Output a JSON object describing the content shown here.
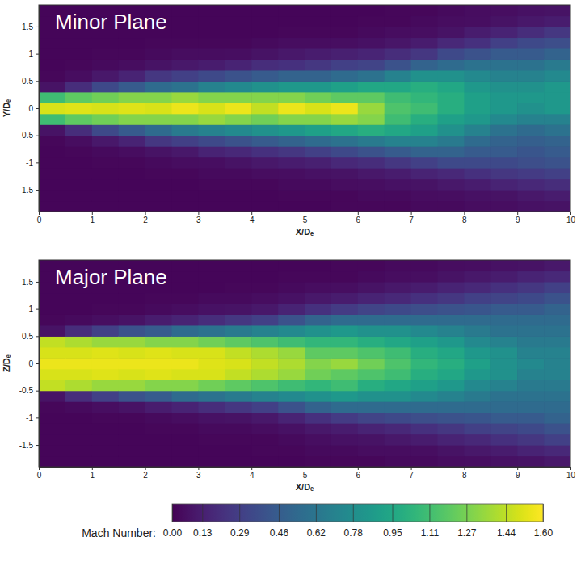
{
  "chart_data": [
    {
      "type": "heatmap",
      "title": "Minor Plane",
      "xlabel": "X/Dₑ",
      "ylabel": "Y/Dₑ",
      "xlim": [
        0,
        10
      ],
      "ylim": [
        -1.9,
        1.9
      ],
      "xticks": [
        0,
        1,
        2,
        3,
        4,
        5,
        6,
        7,
        8,
        9,
        10
      ],
      "yticks": [
        -1.5,
        -1,
        -0.5,
        0,
        0.5,
        1,
        1.5
      ],
      "x": [
        0.25,
        0.75,
        1.25,
        1.75,
        2.25,
        2.75,
        3.25,
        3.75,
        4.25,
        4.75,
        5.25,
        5.75,
        6.25,
        6.75,
        7.25,
        7.75,
        8.25,
        8.75,
        9.25,
        9.75
      ],
      "y": [
        -1.8,
        -1.6,
        -1.4,
        -1.2,
        -1,
        -0.8,
        -0.6,
        -0.4,
        -0.2,
        0,
        0.2,
        0.4,
        0.6,
        0.8,
        1,
        1.2,
        1.4,
        1.6,
        1.8
      ],
      "z": [
        [
          0.02,
          0.02,
          0.02,
          0.02,
          0.02,
          0.02,
          0.03,
          0.08,
          1.1,
          1.5,
          1.1,
          0.08,
          0.03,
          0.02,
          0.02,
          0.02,
          0.02,
          0.02,
          0.02
        ],
        [
          0.02,
          0.02,
          0.02,
          0.02,
          0.02,
          0.03,
          0.05,
          0.2,
          1.2,
          1.52,
          1.2,
          0.2,
          0.05,
          0.03,
          0.02,
          0.02,
          0.02,
          0.02,
          0.02
        ],
        [
          0.02,
          0.02,
          0.02,
          0.02,
          0.03,
          0.04,
          0.1,
          0.35,
          1.25,
          1.5,
          1.25,
          0.35,
          0.1,
          0.04,
          0.03,
          0.02,
          0.02,
          0.02,
          0.02
        ],
        [
          0.02,
          0.02,
          0.02,
          0.02,
          0.03,
          0.05,
          0.15,
          0.45,
          1.3,
          1.52,
          1.3,
          0.45,
          0.15,
          0.05,
          0.03,
          0.02,
          0.02,
          0.02,
          0.02
        ],
        [
          0.02,
          0.02,
          0.02,
          0.03,
          0.04,
          0.08,
          0.25,
          0.55,
          1.3,
          1.5,
          1.3,
          0.55,
          0.25,
          0.08,
          0.04,
          0.03,
          0.02,
          0.02,
          0.02
        ],
        [
          0.02,
          0.02,
          0.02,
          0.03,
          0.05,
          0.1,
          0.3,
          0.65,
          1.3,
          1.55,
          1.35,
          0.6,
          0.3,
          0.1,
          0.05,
          0.03,
          0.02,
          0.02,
          0.02
        ],
        [
          0.02,
          0.02,
          0.03,
          0.04,
          0.06,
          0.15,
          0.35,
          0.7,
          1.35,
          1.5,
          1.3,
          0.7,
          0.35,
          0.12,
          0.05,
          0.03,
          0.02,
          0.02,
          0.02
        ],
        [
          0.02,
          0.02,
          0.03,
          0.04,
          0.08,
          0.18,
          0.4,
          0.75,
          1.3,
          1.55,
          1.3,
          0.75,
          0.4,
          0.15,
          0.06,
          0.03,
          0.02,
          0.02,
          0.02
        ],
        [
          0.02,
          0.02,
          0.03,
          0.05,
          0.1,
          0.22,
          0.45,
          0.8,
          1.25,
          1.45,
          1.3,
          0.8,
          0.45,
          0.2,
          0.08,
          0.04,
          0.02,
          0.02,
          0.02
        ],
        [
          0.02,
          0.03,
          0.04,
          0.06,
          0.12,
          0.25,
          0.5,
          0.85,
          1.3,
          1.55,
          1.3,
          0.85,
          0.5,
          0.22,
          0.1,
          0.05,
          0.03,
          0.02,
          0.02
        ],
        [
          0.02,
          0.03,
          0.04,
          0.07,
          0.14,
          0.3,
          0.55,
          0.9,
          1.3,
          1.5,
          1.25,
          0.85,
          0.5,
          0.25,
          0.12,
          0.05,
          0.03,
          0.02,
          0.02
        ],
        [
          0.03,
          0.03,
          0.05,
          0.08,
          0.18,
          0.35,
          0.6,
          0.95,
          1.35,
          1.55,
          1.2,
          0.9,
          0.55,
          0.3,
          0.14,
          0.06,
          0.03,
          0.02,
          0.02
        ],
        [
          0.03,
          0.04,
          0.06,
          0.1,
          0.2,
          0.4,
          0.65,
          1.0,
          1.3,
          1.35,
          1.2,
          0.95,
          0.6,
          0.32,
          0.16,
          0.07,
          0.04,
          0.03,
          0.02
        ],
        [
          0.03,
          0.04,
          0.07,
          0.12,
          0.25,
          0.45,
          0.7,
          0.95,
          1.1,
          1.15,
          1.1,
          0.95,
          0.7,
          0.4,
          0.2,
          0.09,
          0.05,
          0.03,
          0.03
        ],
        [
          0.04,
          0.05,
          0.08,
          0.15,
          0.3,
          0.5,
          0.7,
          0.9,
          1.0,
          1.1,
          1.05,
          1.0,
          0.8,
          0.5,
          0.25,
          0.12,
          0.06,
          0.04,
          0.03
        ],
        [
          0.04,
          0.06,
          0.1,
          0.18,
          0.35,
          0.5,
          0.65,
          0.8,
          0.9,
          1.0,
          1.0,
          0.95,
          0.8,
          0.55,
          0.35,
          0.18,
          0.08,
          0.05,
          0.04
        ],
        [
          0.05,
          0.07,
          0.12,
          0.22,
          0.35,
          0.45,
          0.55,
          0.7,
          0.85,
          0.9,
          0.9,
          0.85,
          0.75,
          0.6,
          0.4,
          0.22,
          0.12,
          0.06,
          0.05
        ],
        [
          0.06,
          0.08,
          0.15,
          0.25,
          0.35,
          0.45,
          0.5,
          0.6,
          0.75,
          0.85,
          0.85,
          0.8,
          0.7,
          0.6,
          0.45,
          0.3,
          0.15,
          0.08,
          0.06
        ],
        [
          0.07,
          0.1,
          0.18,
          0.28,
          0.38,
          0.42,
          0.48,
          0.55,
          0.7,
          0.8,
          0.85,
          0.8,
          0.7,
          0.6,
          0.45,
          0.35,
          0.2,
          0.1,
          0.07
        ],
        [
          0.08,
          0.12,
          0.2,
          0.3,
          0.4,
          0.45,
          0.5,
          0.6,
          0.7,
          0.85,
          0.85,
          0.85,
          0.75,
          0.65,
          0.5,
          0.38,
          0.25,
          0.12,
          0.08
        ]
      ]
    },
    {
      "type": "heatmap",
      "title": "Major Plane",
      "xlabel": "X/Dₑ",
      "ylabel": "Z/Dₑ",
      "xlim": [
        0,
        10
      ],
      "ylim": [
        -1.9,
        1.9
      ],
      "xticks": [
        0,
        1,
        2,
        3,
        4,
        5,
        6,
        7,
        8,
        9,
        10
      ],
      "yticks": [
        -1.5,
        -1,
        -0.5,
        0,
        0.5,
        1,
        1.5
      ],
      "x": [
        0.25,
        0.75,
        1.25,
        1.75,
        2.25,
        2.75,
        3.25,
        3.75,
        4.25,
        4.75,
        5.25,
        5.75,
        6.25,
        6.75,
        7.25,
        7.75,
        8.25,
        8.75,
        9.25,
        9.75
      ],
      "y": [
        -1.8,
        -1.6,
        -1.4,
        -1.2,
        -1,
        -0.8,
        -0.6,
        -0.4,
        -0.2,
        0,
        0.2,
        0.4,
        0.6,
        0.8,
        1,
        1.2,
        1.4,
        1.6,
        1.8
      ],
      "z": [
        [
          0.02,
          0.02,
          0.02,
          0.02,
          0.02,
          0.03,
          0.08,
          1.45,
          1.5,
          1.55,
          1.5,
          1.45,
          0.08,
          0.03,
          0.02,
          0.02,
          0.02,
          0.02,
          0.02
        ],
        [
          0.02,
          0.02,
          0.02,
          0.02,
          0.02,
          0.04,
          0.2,
          1.4,
          1.5,
          1.55,
          1.5,
          1.4,
          0.2,
          0.04,
          0.02,
          0.02,
          0.02,
          0.02,
          0.02
        ],
        [
          0.02,
          0.02,
          0.02,
          0.02,
          0.03,
          0.06,
          0.3,
          1.35,
          1.52,
          1.55,
          1.52,
          1.35,
          0.3,
          0.06,
          0.03,
          0.02,
          0.02,
          0.02,
          0.02
        ],
        [
          0.02,
          0.02,
          0.02,
          0.02,
          0.03,
          0.08,
          0.4,
          1.35,
          1.5,
          1.55,
          1.5,
          1.35,
          0.4,
          0.08,
          0.03,
          0.02,
          0.02,
          0.02,
          0.02
        ],
        [
          0.02,
          0.02,
          0.02,
          0.03,
          0.04,
          0.12,
          0.45,
          1.3,
          1.52,
          1.55,
          1.52,
          1.3,
          0.45,
          0.12,
          0.04,
          0.03,
          0.02,
          0.02,
          0.02
        ],
        [
          0.02,
          0.02,
          0.02,
          0.03,
          0.05,
          0.15,
          0.55,
          1.3,
          1.5,
          1.55,
          1.5,
          1.3,
          0.55,
          0.15,
          0.05,
          0.03,
          0.02,
          0.02,
          0.02
        ],
        [
          0.02,
          0.02,
          0.03,
          0.04,
          0.07,
          0.2,
          0.6,
          1.25,
          1.5,
          1.52,
          1.5,
          1.25,
          0.6,
          0.2,
          0.07,
          0.04,
          0.02,
          0.02,
          0.02
        ],
        [
          0.02,
          0.02,
          0.03,
          0.04,
          0.08,
          0.25,
          0.65,
          1.2,
          1.45,
          1.5,
          1.45,
          1.2,
          0.65,
          0.25,
          0.08,
          0.04,
          0.03,
          0.02,
          0.02
        ],
        [
          0.02,
          0.03,
          0.03,
          0.05,
          0.1,
          0.3,
          0.7,
          1.15,
          1.4,
          1.45,
          1.4,
          1.15,
          0.7,
          0.3,
          0.1,
          0.05,
          0.03,
          0.02,
          0.02
        ],
        [
          0.02,
          0.03,
          0.04,
          0.07,
          0.15,
          0.4,
          0.75,
          1.1,
          1.35,
          1.4,
          1.35,
          1.1,
          0.75,
          0.4,
          0.15,
          0.07,
          0.04,
          0.03,
          0.02
        ],
        [
          0.03,
          0.04,
          0.06,
          0.1,
          0.22,
          0.5,
          0.8,
          1.05,
          1.25,
          1.3,
          1.2,
          1.05,
          0.8,
          0.5,
          0.22,
          0.1,
          0.05,
          0.03,
          0.02
        ],
        [
          0.03,
          0.04,
          0.07,
          0.12,
          0.28,
          0.55,
          0.85,
          1.1,
          1.2,
          1.35,
          1.2,
          1.05,
          0.85,
          0.55,
          0.28,
          0.12,
          0.06,
          0.03,
          0.03
        ],
        [
          0.03,
          0.05,
          0.08,
          0.15,
          0.32,
          0.55,
          0.8,
          1.0,
          1.15,
          1.25,
          1.15,
          1.0,
          0.8,
          0.55,
          0.32,
          0.15,
          0.08,
          0.04,
          0.03
        ],
        [
          0.04,
          0.05,
          0.1,
          0.18,
          0.35,
          0.55,
          0.8,
          0.95,
          1.1,
          1.15,
          1.1,
          0.95,
          0.8,
          0.55,
          0.35,
          0.18,
          0.1,
          0.05,
          0.04
        ],
        [
          0.04,
          0.06,
          0.12,
          0.22,
          0.38,
          0.55,
          0.75,
          0.9,
          1.0,
          1.05,
          1.0,
          0.9,
          0.75,
          0.55,
          0.38,
          0.22,
          0.12,
          0.06,
          0.04
        ],
        [
          0.05,
          0.08,
          0.15,
          0.25,
          0.4,
          0.55,
          0.7,
          0.85,
          0.95,
          1.0,
          0.95,
          0.85,
          0.7,
          0.55,
          0.4,
          0.25,
          0.15,
          0.08,
          0.05
        ],
        [
          0.06,
          0.1,
          0.18,
          0.3,
          0.42,
          0.55,
          0.65,
          0.75,
          0.85,
          0.9,
          0.85,
          0.75,
          0.65,
          0.55,
          0.42,
          0.3,
          0.18,
          0.1,
          0.06
        ],
        [
          0.07,
          0.12,
          0.22,
          0.32,
          0.45,
          0.55,
          0.6,
          0.7,
          0.8,
          0.8,
          0.8,
          0.7,
          0.6,
          0.55,
          0.45,
          0.32,
          0.22,
          0.12,
          0.07
        ],
        [
          0.08,
          0.15,
          0.25,
          0.35,
          0.45,
          0.55,
          0.6,
          0.65,
          0.7,
          0.75,
          0.7,
          0.65,
          0.6,
          0.55,
          0.45,
          0.35,
          0.25,
          0.15,
          0.08
        ],
        [
          0.1,
          0.18,
          0.3,
          0.4,
          0.5,
          0.55,
          0.6,
          0.65,
          0.7,
          0.7,
          0.7,
          0.65,
          0.6,
          0.55,
          0.5,
          0.4,
          0.3,
          0.18,
          0.1
        ]
      ]
    }
  ],
  "colorbar": {
    "label": "Mach Number:",
    "range": [
      0,
      1.6
    ],
    "ticks": [
      {
        "value": 0,
        "label": "0.00"
      },
      0.13,
      0.29,
      0.46,
      0.62,
      0.78,
      0.95,
      1.11,
      1.27,
      1.44,
      {
        "value": 1.6,
        "label": "1.60"
      }
    ]
  }
}
